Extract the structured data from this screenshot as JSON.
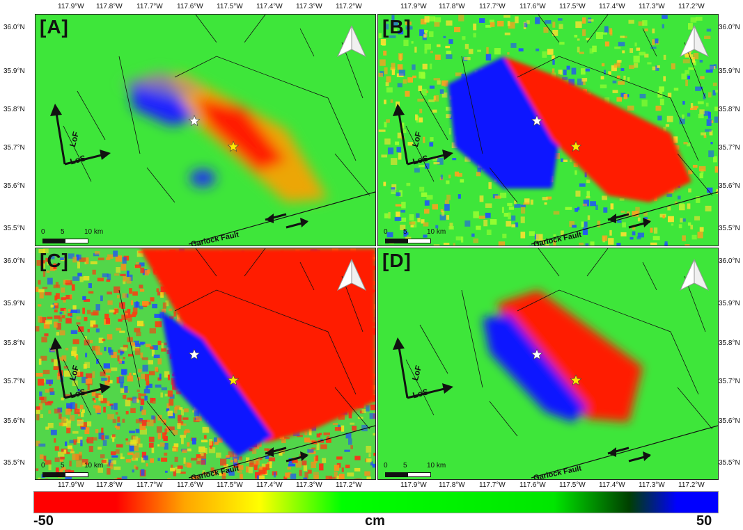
{
  "panels": [
    {
      "label": "[A]"
    },
    {
      "label": "[B]"
    },
    {
      "label": "[C]"
    },
    {
      "label": "[D]"
    }
  ],
  "lon_ticks": [
    "117.9°W",
    "117.8°W",
    "117.7°W",
    "117.6°W",
    "117.5°W",
    "117.4°W",
    "117.3°W",
    "117.2°W"
  ],
  "lat_ticks": [
    "36.0°N",
    "35.9°N",
    "35.8°N",
    "35.7°N",
    "35.6°N",
    "35.5°N"
  ],
  "map_text": {
    "lof": "LoF",
    "los": "LoS",
    "fault": "Garlock Fault",
    "scale_0": "0",
    "scale_5": "5",
    "scale_10": "10 km"
  },
  "colorbar": {
    "min_label": "-50",
    "unit": "cm",
    "max_label": "50",
    "colors": [
      "#ff0000",
      "#ffa500",
      "#ffff00",
      "#00ff00",
      "#00e600",
      "#004000",
      "#0000ff"
    ]
  }
}
